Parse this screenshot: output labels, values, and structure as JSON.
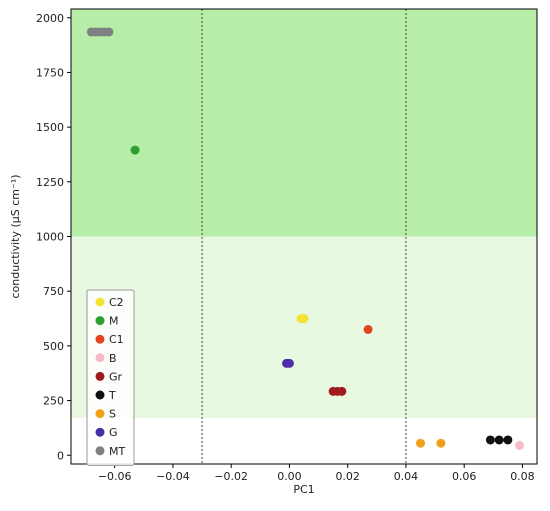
{
  "chart_data": {
    "type": "scatter",
    "xlabel": "PC1",
    "ylabel": "conductivity (μS cm⁻¹)",
    "xlim": [
      -0.075,
      0.085
    ],
    "ylim": [
      -40,
      2040
    ],
    "xticks": [
      -0.06,
      -0.04,
      -0.02,
      0.0,
      0.02,
      0.04,
      0.06,
      0.08
    ],
    "xtick_labels": [
      "−0.06",
      "−0.04",
      "−0.02",
      "0.00",
      "0.02",
      "0.04",
      "0.06",
      "0.08"
    ],
    "yticks": [
      0,
      250,
      500,
      750,
      1000,
      1250,
      1500,
      1750,
      2000
    ],
    "ytick_labels": [
      "0",
      "250",
      "500",
      "750",
      "1000",
      "1250",
      "1500",
      "1750",
      "2000"
    ],
    "bands": [
      {
        "y0": 1000,
        "y1": 2040,
        "color": "#b6eda8"
      },
      {
        "y0": 170,
        "y1": 1000,
        "color": "#e8f8e1"
      }
    ],
    "vlines": [
      -0.03,
      0.04
    ],
    "legend_position": "lower-left",
    "series": [
      {
        "name": "C2",
        "color": "#f2e234",
        "points": [
          [
            0.004,
            625
          ],
          [
            0.005,
            625
          ]
        ]
      },
      {
        "name": "M",
        "color": "#2ca02c",
        "points": [
          [
            -0.053,
            1395
          ]
        ]
      },
      {
        "name": "C1",
        "color": "#e2451e",
        "points": [
          [
            0.027,
            575
          ]
        ]
      },
      {
        "name": "B",
        "color": "#f5bcc7",
        "points": [
          [
            0.079,
            45
          ]
        ]
      },
      {
        "name": "Gr",
        "color": "#a01c1c",
        "points": [
          [
            0.015,
            292
          ],
          [
            0.0165,
            292
          ],
          [
            0.018,
            292
          ]
        ]
      },
      {
        "name": "T",
        "color": "#111111",
        "points": [
          [
            0.069,
            70
          ],
          [
            0.072,
            70
          ],
          [
            0.075,
            70
          ]
        ]
      },
      {
        "name": "S",
        "color": "#f0a118",
        "points": [
          [
            0.045,
            55
          ],
          [
            0.052,
            55
          ]
        ]
      },
      {
        "name": "G",
        "color": "#4a2fa5",
        "points": [
          [
            -0.001,
            420
          ],
          [
            0.0,
            420
          ]
        ]
      },
      {
        "name": "MT",
        "color": "#808080",
        "points": [
          [
            -0.068,
            1935
          ],
          [
            -0.0665,
            1935
          ],
          [
            -0.065,
            1935
          ],
          [
            -0.0635,
            1935
          ],
          [
            -0.062,
            1935
          ]
        ]
      }
    ]
  }
}
